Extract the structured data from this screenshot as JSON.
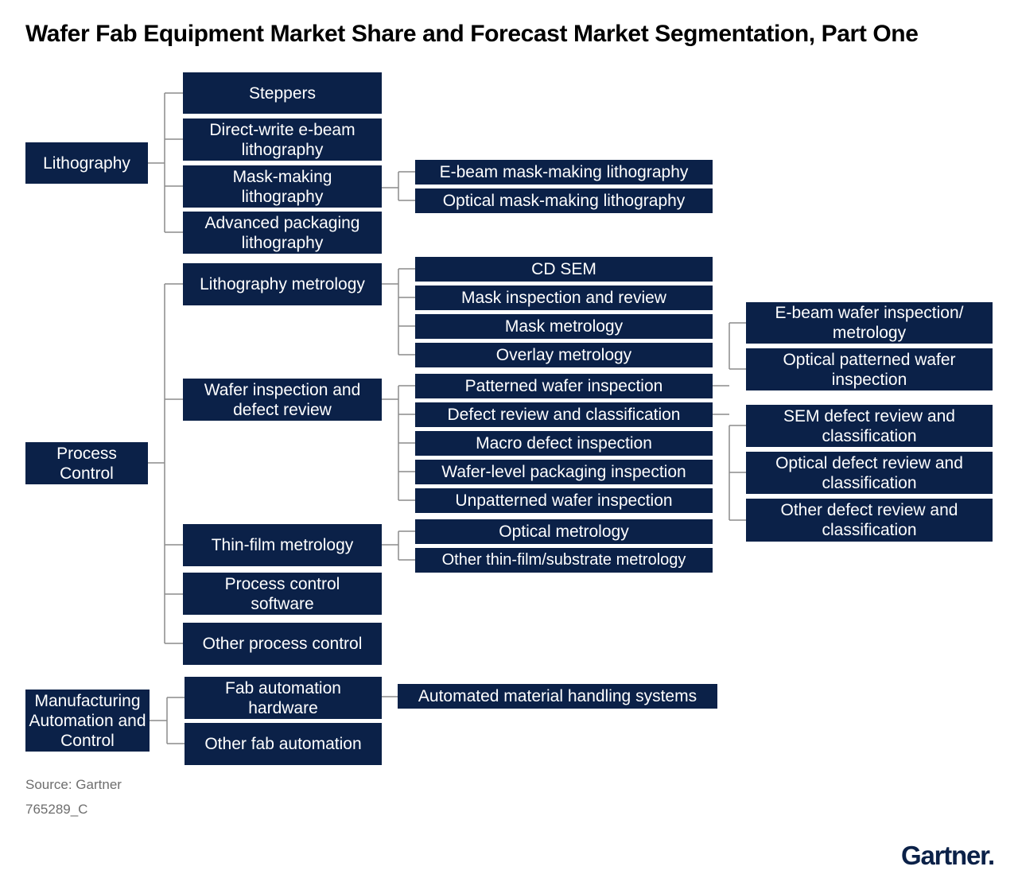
{
  "title": "Wafer Fab Equipment Market Share and Forecast Market Segmentation, Part One",
  "nodes": {
    "lithography": "Lithography",
    "steppers": "Steppers",
    "direct_write": "Direct-write e-beam lithography",
    "mask_making": "Mask-making lithography",
    "advanced_packaging": "Advanced packaging lithography",
    "ebeam_mask": "E-beam mask-making lithography",
    "optical_mask": "Optical mask-making lithography",
    "process_control": "Process Control",
    "litho_metrology": "Lithography metrology",
    "wafer_inspection": "Wafer inspection and defect review",
    "thin_film": "Thin-film metrology",
    "pc_software": "Process control software",
    "other_pc": "Other process control",
    "cd_sem": "CD SEM",
    "mask_inspection": "Mask inspection and review",
    "mask_metrology": "Mask metrology",
    "overlay": "Overlay metrology",
    "patterned": "Patterned wafer inspection",
    "defect_review": "Defect review and classification",
    "macro": "Macro defect inspection",
    "wlp": "Wafer-level packaging inspection",
    "unpatterned": "Unpatterned wafer inspection",
    "optical_metrology": "Optical metrology",
    "other_thin_film": "Other thin-film/substrate metrology",
    "ebeam_wafer": "E-beam wafer inspection/ metrology",
    "optical_patterned": "Optical patterned wafer inspection",
    "sem_defect": "SEM defect review and classification",
    "optical_defect": "Optical defect review and classification",
    "other_defect": "Other defect review and classification",
    "mfg_automation": "Manufacturing Automation and Control",
    "fab_hw": "Fab automation hardware",
    "other_fab": "Other fab automation",
    "amhs": "Automated material handling systems"
  },
  "source": "Source: Gartner",
  "code": "765289_C",
  "logo": "Gartner.",
  "colors": {
    "box": "#0b2148",
    "line": "#8c8c8c",
    "text_on_box": "#ffffff"
  }
}
